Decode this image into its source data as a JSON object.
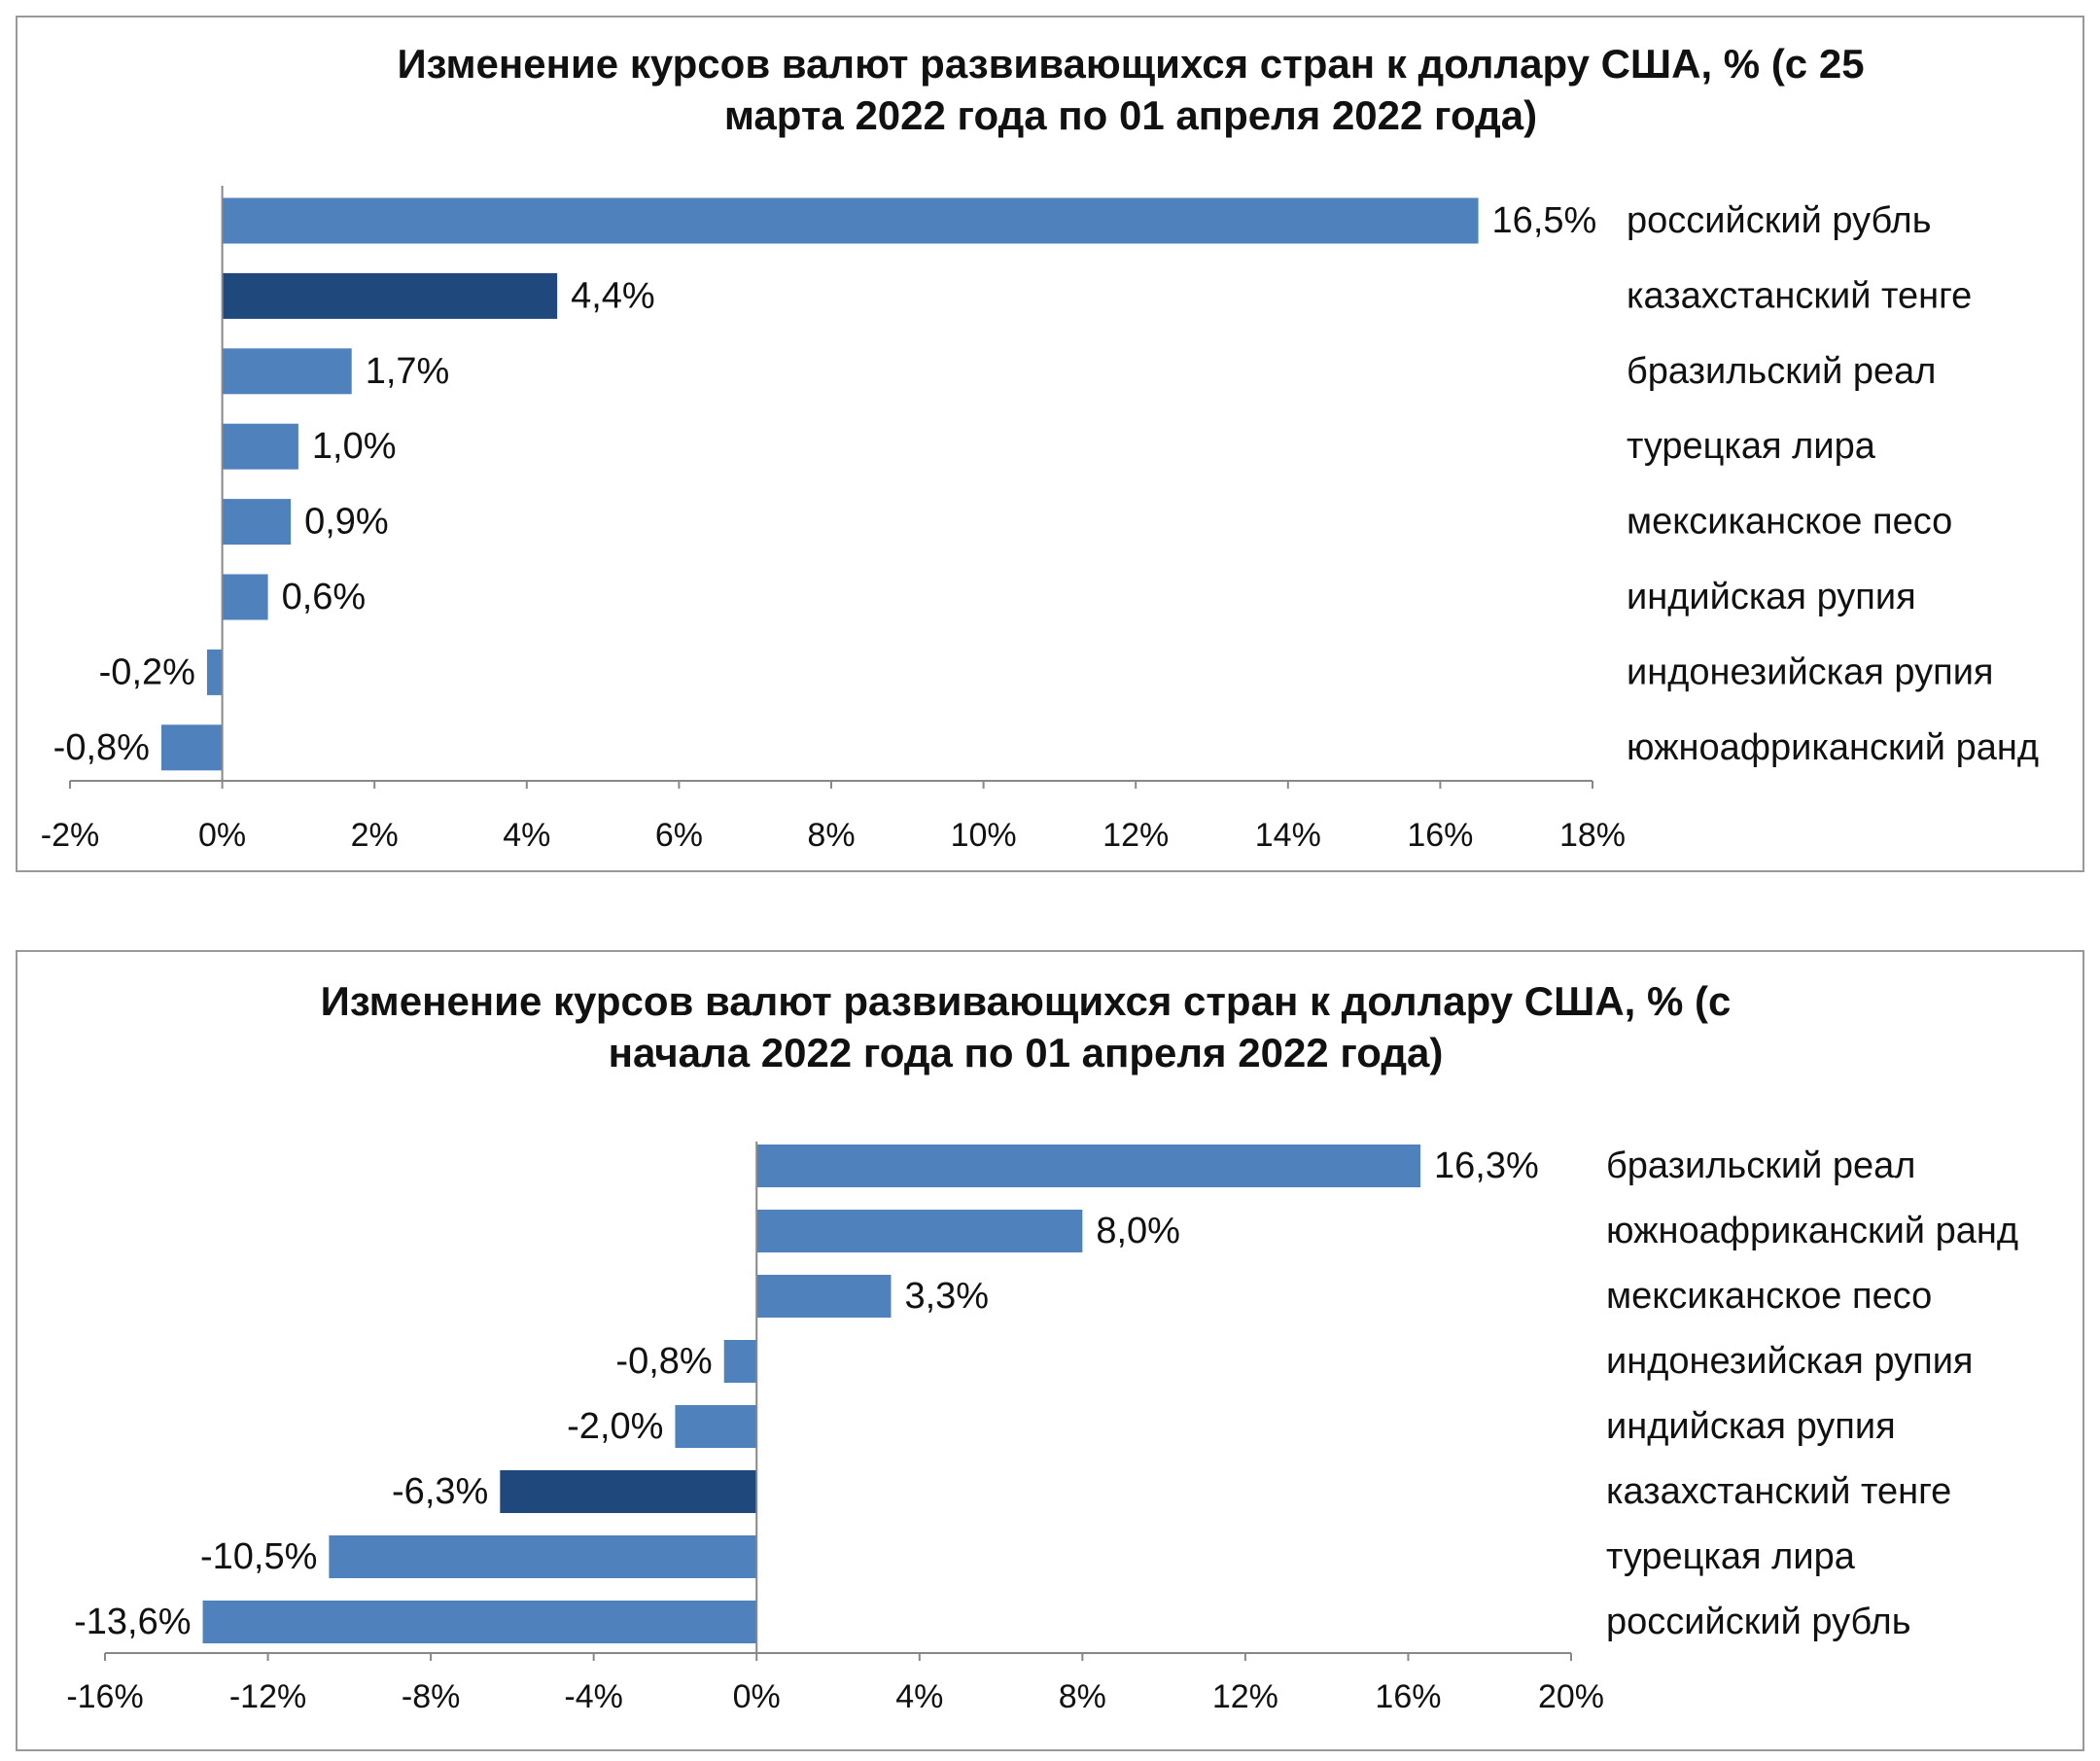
{
  "chart_data": [
    {
      "type": "barh",
      "title": [
        "Изменение курсов валют развивающихся стран к доллару США, % (с 25",
        "марта 2022 года по 01 апреля 2022 года)"
      ],
      "categories": [
        "российский рубль",
        "казахстанский тенге",
        "бразильский реал",
        "турецкая лира",
        "мексиканское песо",
        "индийская рупия",
        "индонезийская рупия",
        "южноафриканский ранд"
      ],
      "values": [
        16.5,
        4.4,
        1.7,
        1.0,
        0.9,
        0.6,
        -0.2,
        -0.8
      ],
      "value_labels": [
        "16,5%",
        "4,4%",
        "1,7%",
        "1,0%",
        "0,9%",
        "0,6%",
        "-0,2%",
        "-0,8%"
      ],
      "colors": [
        "#4f81bd",
        "#1f497d",
        "#4f81bd",
        "#4f81bd",
        "#4f81bd",
        "#4f81bd",
        "#4f81bd",
        "#4f81bd"
      ],
      "xlim": [
        -2,
        18
      ],
      "xticks": [
        {
          "value": -2,
          "label": "-2%"
        },
        {
          "value": 0,
          "label": "0%"
        },
        {
          "value": 2,
          "label": "2%"
        },
        {
          "value": 4,
          "label": "4%"
        },
        {
          "value": 6,
          "label": "6%"
        },
        {
          "value": 8,
          "label": "8%"
        },
        {
          "value": 10,
          "label": "10%"
        },
        {
          "value": 12,
          "label": "12%"
        },
        {
          "value": 14,
          "label": "14%"
        },
        {
          "value": 16,
          "label": "16%"
        },
        {
          "value": 18,
          "label": "18%"
        }
      ],
      "grid": false
    },
    {
      "type": "barh",
      "title": [
        "Изменение курсов валют развивающихся стран к доллару США, % (с",
        "начала 2022 года по 01 апреля 2022 года)"
      ],
      "categories": [
        "бразильский реал",
        "южноафриканский ранд",
        "мексиканское песо",
        "индонезийская рупия",
        "индийская рупия",
        "казахстанский тенге",
        "турецкая лира",
        "российский рубль"
      ],
      "values": [
        16.3,
        8.0,
        3.3,
        -0.8,
        -2.0,
        -6.3,
        -10.5,
        -13.6
      ],
      "value_labels": [
        "16,3%",
        "8,0%",
        "3,3%",
        "-0,8%",
        "-2,0%",
        "-6,3%",
        "-10,5%",
        "-13,6%"
      ],
      "colors": [
        "#4f81bd",
        "#4f81bd",
        "#4f81bd",
        "#4f81bd",
        "#4f81bd",
        "#1f497d",
        "#4f81bd",
        "#4f81bd"
      ],
      "xlim": [
        -16,
        20
      ],
      "xticks": [
        {
          "value": -16,
          "label": "-16%"
        },
        {
          "value": -12,
          "label": "-12%"
        },
        {
          "value": -8,
          "label": "-8%"
        },
        {
          "value": -4,
          "label": "-4%"
        },
        {
          "value": 0,
          "label": "0%"
        },
        {
          "value": 4,
          "label": "4%"
        },
        {
          "value": 8,
          "label": "8%"
        },
        {
          "value": 12,
          "label": "12%"
        },
        {
          "value": 16,
          "label": "16%"
        },
        {
          "value": 20,
          "label": "20%"
        }
      ],
      "grid": false
    }
  ]
}
